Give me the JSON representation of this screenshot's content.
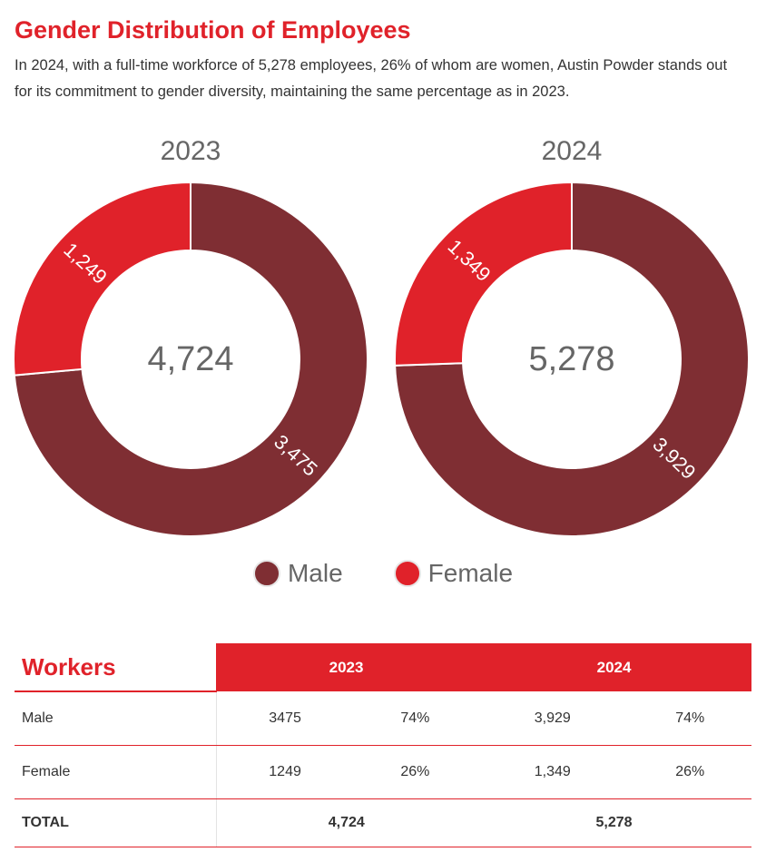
{
  "page": {
    "title": "Gender Distribution of Employees",
    "intro": "In 2024, with a full-time workforce of 5,278 employees, 26% of whom are women, Austin Powder stands out for its commitment to gender diversity, maintaining the same percentage as in 2023."
  },
  "chart_data": [
    {
      "type": "pie",
      "title": "2023",
      "center_label": "4,724",
      "categories": [
        "Male",
        "Female"
      ],
      "values": [
        3475,
        1249
      ],
      "value_labels": [
        "3,475",
        "1,249"
      ],
      "colors": [
        "#7f2e33",
        "#e0222a"
      ]
    },
    {
      "type": "pie",
      "title": "2024",
      "center_label": "5,278",
      "categories": [
        "Male",
        "Female"
      ],
      "values": [
        3929,
        1349
      ],
      "value_labels": [
        "3,929",
        "1,349"
      ],
      "colors": [
        "#7f2e33",
        "#e0222a"
      ]
    }
  ],
  "legend": [
    {
      "label": "Male",
      "color": "#7f2e33"
    },
    {
      "label": "Female",
      "color": "#e0222a"
    }
  ],
  "table": {
    "heading": "Workers",
    "columns": [
      "2023",
      "2024"
    ],
    "rows": [
      {
        "label": "Male",
        "cells": [
          "3475",
          "74%",
          "3,929",
          "74%"
        ]
      },
      {
        "label": "Female",
        "cells": [
          "1249",
          "26%",
          "1,349",
          "26%"
        ]
      }
    ],
    "total": {
      "label": "TOTAL",
      "cells": [
        "4,724",
        "5,278"
      ]
    }
  }
}
